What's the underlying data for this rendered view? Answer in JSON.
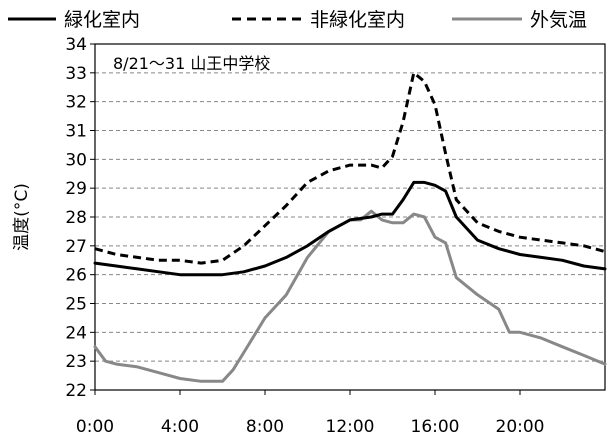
{
  "chart_data": {
    "type": "line",
    "title": "",
    "annotation": "8/21～31 山王中学校",
    "xlabel": "",
    "ylabel": "温度(°C)",
    "ylim": [
      22,
      34
    ],
    "yticks": [
      22,
      23,
      24,
      25,
      26,
      27,
      28,
      29,
      30,
      31,
      32,
      33,
      34
    ],
    "xlim": [
      0,
      24
    ],
    "xticks": [
      0,
      4,
      8,
      12,
      16,
      20
    ],
    "xtick_labels": [
      "0:00",
      "4:00",
      "8:00",
      "12:00",
      "16:00",
      "20:00"
    ],
    "grid": "horizontal-dashed",
    "legend_position": "top",
    "series": [
      {
        "name": "緑化室内",
        "style": "solid",
        "color": "#000000",
        "x": [
          0,
          1,
          2,
          3,
          4,
          5,
          6,
          7,
          8,
          9,
          10,
          11,
          12,
          13,
          13.5,
          14,
          14.5,
          15,
          15.5,
          16,
          16.5,
          17,
          18,
          19,
          20,
          21,
          22,
          23,
          24
        ],
        "y": [
          26.4,
          26.3,
          26.2,
          26.1,
          26.0,
          26.0,
          26.0,
          26.1,
          26.3,
          26.6,
          27.0,
          27.5,
          27.9,
          28.0,
          28.1,
          28.1,
          28.6,
          29.2,
          29.2,
          29.1,
          28.9,
          28.0,
          27.2,
          26.9,
          26.7,
          26.6,
          26.5,
          26.3,
          26.2
        ]
      },
      {
        "name": "非緑化室内",
        "style": "dashed",
        "color": "#000000",
        "x": [
          0,
          1,
          2,
          3,
          4,
          5,
          6,
          7,
          8,
          9,
          10,
          11,
          12,
          13,
          13.5,
          14,
          14.5,
          15,
          15.5,
          16,
          16.5,
          17,
          18,
          19,
          20,
          21,
          22,
          23,
          24
        ],
        "y": [
          26.9,
          26.7,
          26.6,
          26.5,
          26.5,
          26.4,
          26.5,
          27.0,
          27.7,
          28.4,
          29.2,
          29.6,
          29.8,
          29.8,
          29.7,
          30.1,
          31.3,
          33.0,
          32.7,
          31.9,
          30.2,
          28.6,
          27.8,
          27.5,
          27.3,
          27.2,
          27.1,
          27.0,
          26.8
        ]
      },
      {
        "name": "外気温",
        "style": "solid",
        "color": "#888888",
        "x": [
          0,
          0.5,
          1,
          2,
          3,
          4,
          5,
          6,
          6.5,
          7,
          8,
          9,
          10,
          11,
          12,
          12.5,
          13,
          13.5,
          14,
          14.5,
          15,
          15.5,
          16,
          16.5,
          17,
          18,
          19,
          19.5,
          20,
          21,
          22,
          23,
          24
        ],
        "y": [
          23.5,
          23.0,
          22.9,
          22.8,
          22.6,
          22.4,
          22.3,
          22.3,
          22.7,
          23.3,
          24.5,
          25.3,
          26.6,
          27.5,
          27.9,
          27.9,
          28.2,
          27.9,
          27.8,
          27.8,
          28.1,
          28.0,
          27.3,
          27.1,
          25.9,
          25.3,
          24.8,
          24.0,
          24.0,
          23.8,
          23.5,
          23.2,
          22.9
        ]
      }
    ]
  }
}
